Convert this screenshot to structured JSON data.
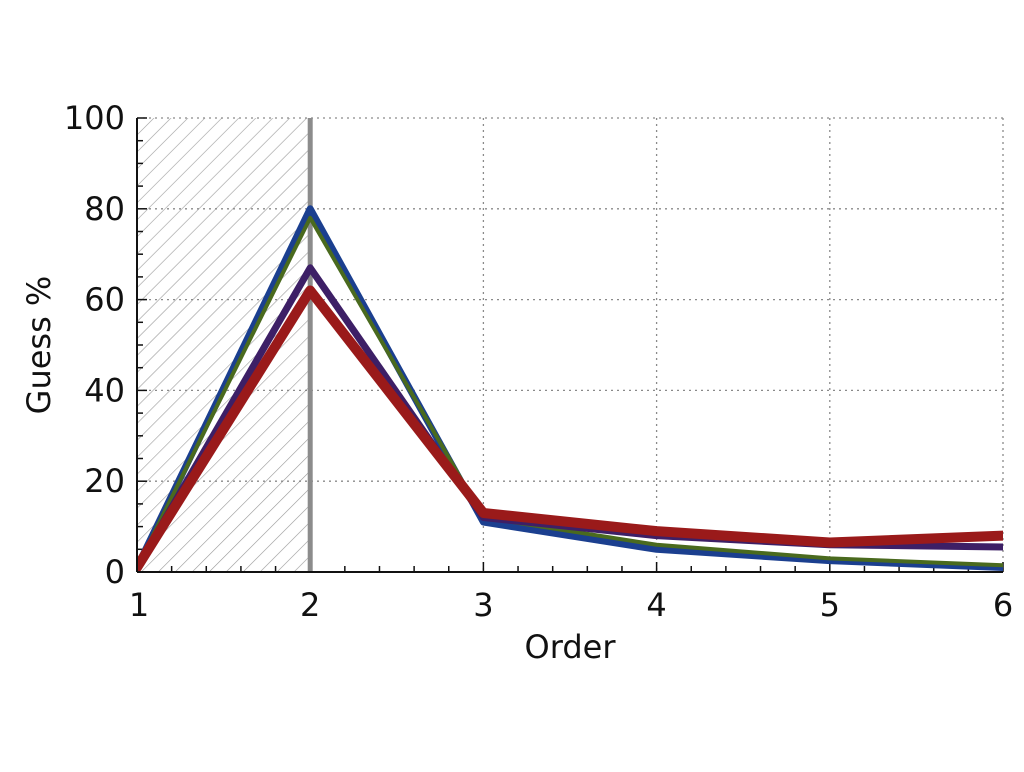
{
  "chart_data": {
    "type": "line",
    "title": "",
    "xlabel": "Order",
    "ylabel": "Guess %",
    "x": [
      1,
      2,
      3,
      4,
      5,
      6
    ],
    "xlim": [
      1,
      6
    ],
    "ylim": [
      0,
      100
    ],
    "x_ticks": [
      "1",
      "2",
      "3",
      "4",
      "5",
      "6"
    ],
    "y_ticks": [
      "0",
      "20",
      "40",
      "60",
      "80",
      "100"
    ],
    "grid": true,
    "legend": "none",
    "marker_line_x": 2,
    "shaded_region": [
      1,
      2
    ],
    "series": [
      {
        "color": "#9a1a1a",
        "values": [
          1,
          62,
          13,
          9,
          6.5,
          8
        ]
      },
      {
        "color": "#3d1f66",
        "values": [
          1,
          67,
          12,
          8,
          6,
          5.5
        ]
      },
      {
        "color": "#4a6a1e",
        "values": [
          1,
          78,
          12,
          6,
          3,
          1.5
        ]
      },
      {
        "color": "#1b3f8f",
        "values": [
          1,
          80,
          11,
          5,
          2.5,
          1
        ]
      }
    ]
  }
}
